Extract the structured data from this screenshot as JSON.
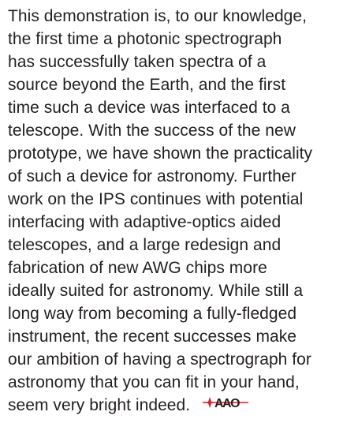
{
  "paragraph": {
    "lines": [
      "This demonstration is, to our knowledge,",
      "the first time a photonic spectrograph",
      "has successfully taken spectra of a",
      "source beyond the Earth, and the first",
      "time such a device was interfaced to a",
      "telescope. With the success of the new",
      "prototype, we have shown the practicality",
      "of such a device for astronomy. Further",
      "work on the IPS continues with potential",
      "interfacing with adaptive-optics aided",
      "telescopes, and a large redesign and",
      "fabrication of new AWG chips more",
      "ideally suited for astronomy. While still a",
      "long way from becoming a fully-fledged",
      "instrument, the recent successes make",
      "our ambition of having a spectrograph for",
      "astronomy that you can fit in your hand,",
      "seem very bright indeed."
    ]
  },
  "logo": {
    "text": "AAO"
  }
}
